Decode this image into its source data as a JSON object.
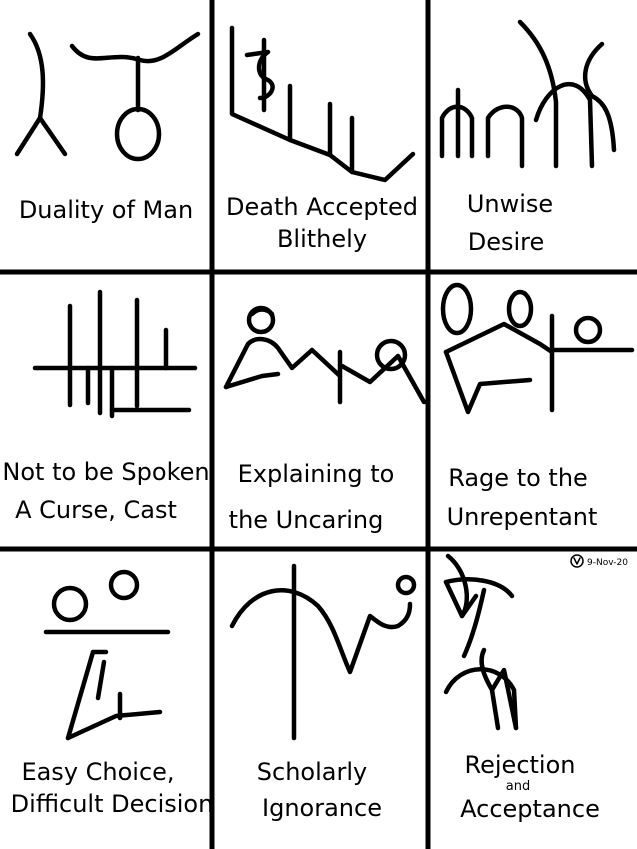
{
  "panels": [
    {
      "id": "duality",
      "lines": [
        "Duality of Man"
      ]
    },
    {
      "id": "death",
      "lines": [
        "Death Accepted",
        "Blithely"
      ]
    },
    {
      "id": "unwise",
      "lines": [
        "Unwise",
        "Desire"
      ]
    },
    {
      "id": "not-spoken",
      "lines": [
        "Not to be Spoken",
        "A Curse, Cast"
      ]
    },
    {
      "id": "explaining",
      "lines": [
        "Explaining to",
        "the Uncaring"
      ]
    },
    {
      "id": "rage",
      "lines": [
        "Rage to the",
        "Unrepentant"
      ]
    },
    {
      "id": "easy-choice",
      "lines": [
        "Easy Choice,",
        "Difficult Decision"
      ]
    },
    {
      "id": "scholarly",
      "lines": [
        "Scholarly",
        "Ignorance"
      ]
    },
    {
      "id": "rejection",
      "lines": [
        "Rejection",
        "and",
        "Acceptance"
      ]
    }
  ],
  "signature": {
    "date": "9-Nov-20"
  }
}
